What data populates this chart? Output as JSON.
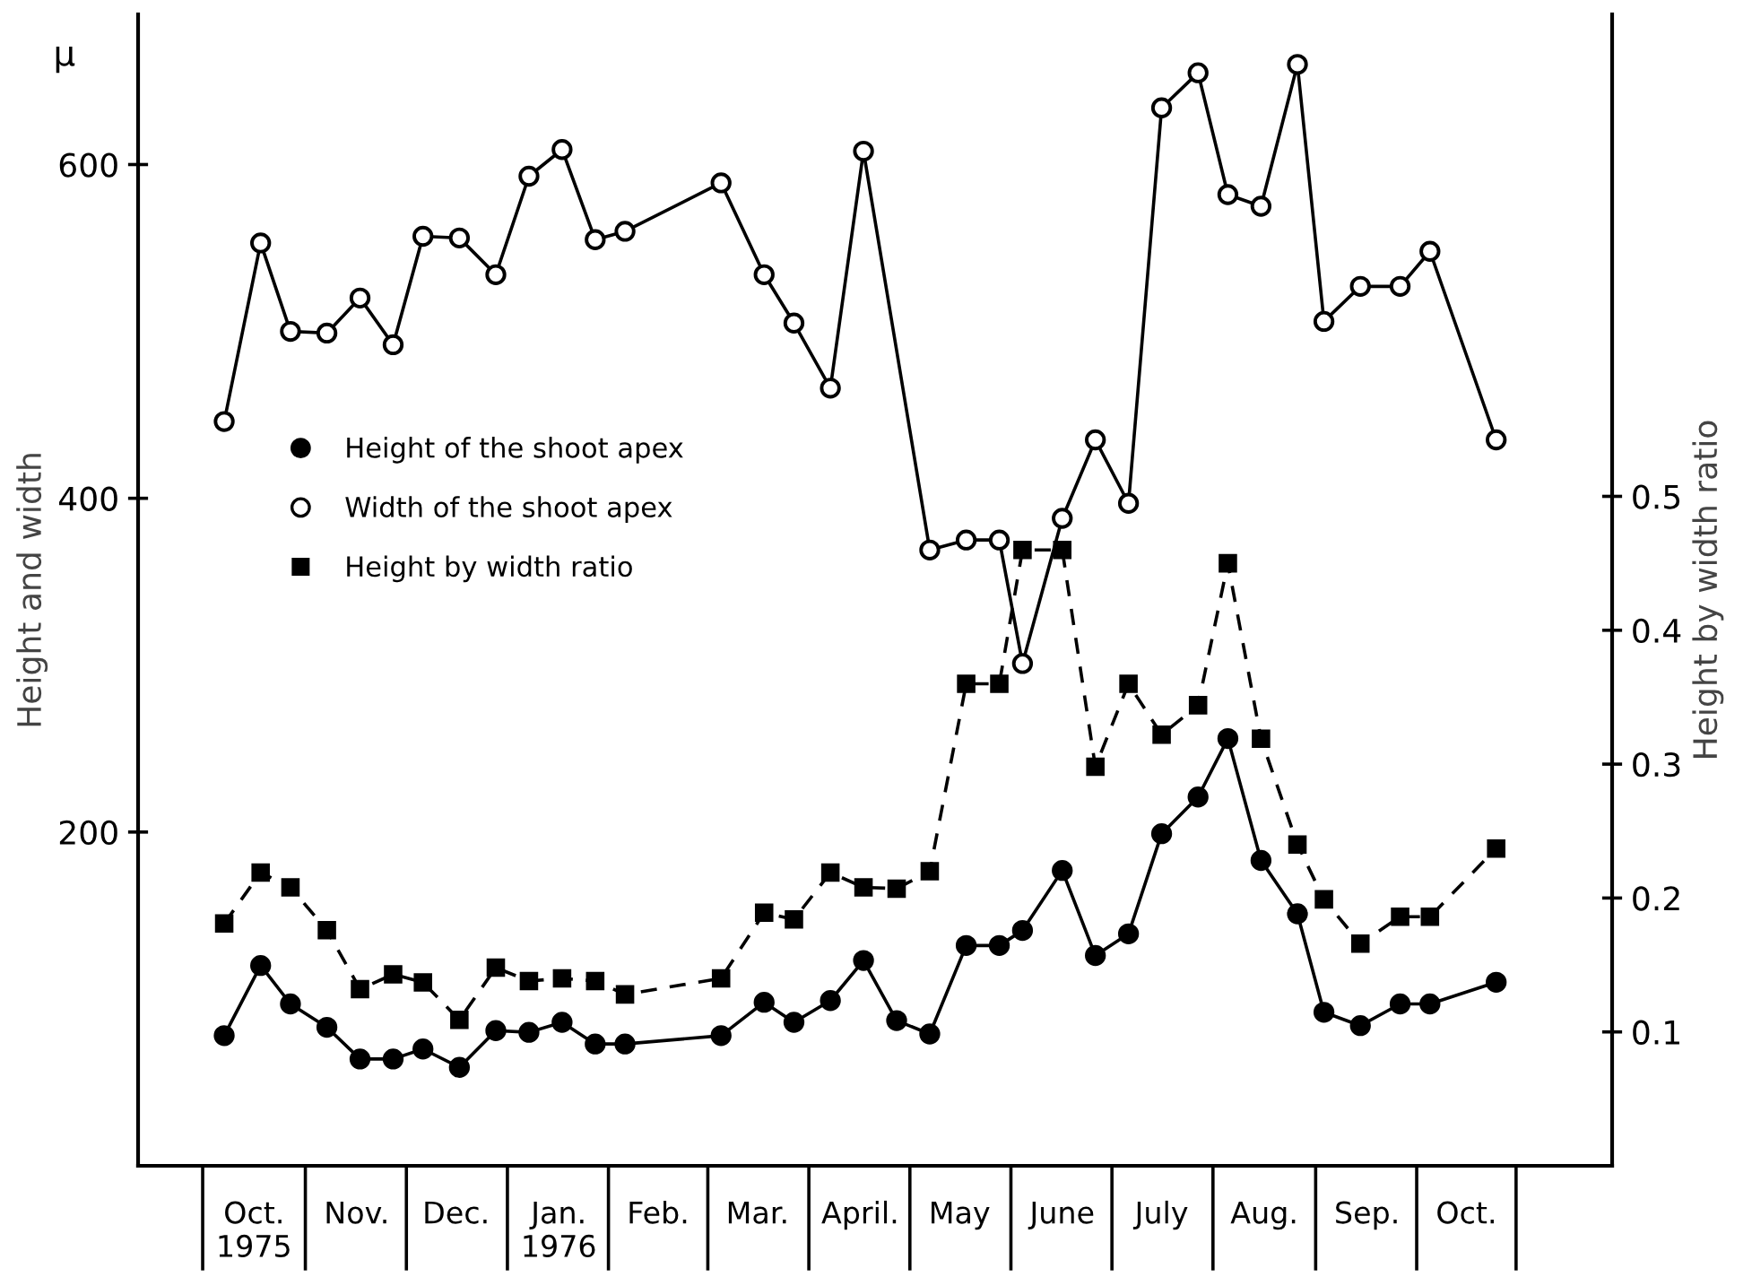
{
  "chart_data": {
    "type": "line",
    "ylabel": "Height and width",
    "y2label": "Height by width ratio",
    "annotations": [
      "μ"
    ],
    "xlim": [
      "1975-09-11",
      "1976-11-29"
    ],
    "ylim": [
      0,
      690
    ],
    "yticks": [
      200,
      400,
      600
    ],
    "y2lim": [
      0,
      0.86
    ],
    "y2ticks": [
      0.1,
      0.2,
      0.3,
      0.4,
      0.5
    ],
    "xticks": [
      {
        "value": "1975-10-16",
        "label": "Oct.\n1975"
      },
      {
        "value": "1975-11-16",
        "label": "Nov."
      },
      {
        "value": "1975-12-16",
        "label": "Dec."
      },
      {
        "value": "1976-01-16",
        "label": "Jan.\n1976"
      },
      {
        "value": "1976-02-15",
        "label": "Feb."
      },
      {
        "value": "1976-03-16",
        "label": "Mar."
      },
      {
        "value": "1976-04-16",
        "label": "April."
      },
      {
        "value": "1976-05-16",
        "label": "May"
      },
      {
        "value": "1976-06-16",
        "label": "June"
      },
      {
        "value": "1976-07-16",
        "label": "July"
      },
      {
        "value": "1976-08-16",
        "label": "Aug."
      },
      {
        "value": "1976-09-16",
        "label": "Sep."
      },
      {
        "value": "1976-10-16",
        "label": "Oct."
      }
    ],
    "grid": false,
    "legend": "left",
    "x": [
      "1975-10-07",
      "1975-10-18",
      "1975-10-27",
      "1975-11-07",
      "1975-11-17",
      "1975-11-27",
      "1975-12-06",
      "1975-12-17",
      "1975-12-28",
      "1976-01-07",
      "1976-01-17",
      "1976-01-27",
      "1976-02-05",
      "1976-03-05",
      "1976-03-18",
      "1976-03-27",
      "1976-04-07",
      "1976-04-17",
      "1976-04-27",
      "1976-05-07",
      "1976-05-18",
      "1976-05-28",
      "1976-06-04",
      "1976-06-16",
      "1976-06-26",
      "1976-07-06",
      "1976-07-16",
      "1976-07-27",
      "1976-08-05",
      "1976-08-15",
      "1976-08-26",
      "1976-09-03",
      "1976-09-14",
      "1976-09-26",
      "1976-10-05",
      "1976-10-25"
    ],
    "series": [
      {
        "name": "Height of the shoot apex",
        "color": "#000000",
        "marker": "circle",
        "line_style": "solid",
        "values": [
          78,
          120,
          97,
          83,
          64,
          64,
          70,
          59,
          81,
          80,
          86,
          73,
          73,
          78,
          98,
          86,
          99,
          123,
          87,
          79,
          132,
          132,
          141,
          177,
          126,
          139,
          199,
          221,
          256,
          183,
          151,
          92,
          84,
          97,
          97,
          110
        ]
      },
      {
        "name": "Width of the shoot apex",
        "color": "#000000",
        "marker": "circle-open",
        "line_style": "solid",
        "x": [
          "1975-10-07",
          "1975-10-18",
          "1975-10-27",
          "1975-11-07",
          "1975-11-17",
          "1975-11-27",
          "1975-12-06",
          "1975-12-17",
          "1975-12-28",
          "1976-01-07",
          "1976-01-17",
          "1976-01-27",
          "1976-02-05",
          "1976-03-05",
          "1976-03-18",
          "1976-03-27",
          "1976-04-07",
          "1976-04-17",
          "1976-05-07",
          "1976-05-18",
          "1976-05-28",
          "1976-06-04",
          "1976-06-16",
          "1976-06-26",
          "1976-07-06",
          "1976-07-16",
          "1976-07-27",
          "1976-08-05",
          "1976-08-15",
          "1976-08-26",
          "1976-09-03",
          "1976-09-14",
          "1976-09-26",
          "1976-10-05",
          "1976-10-25"
        ],
        "values": [
          446,
          553,
          500,
          499,
          520,
          492,
          557,
          556,
          534,
          593,
          609,
          555,
          560,
          589,
          534,
          505,
          466,
          608,
          369,
          375,
          375,
          301,
          388,
          435,
          397,
          634,
          655,
          582,
          575,
          660,
          506,
          527,
          527,
          548,
          435
        ]
      },
      {
        "name": "Height by width ratio",
        "color": "#000000",
        "marker": "square",
        "line_style": "dashed",
        "axis": "y2",
        "values": [
          0.181,
          0.219,
          0.208,
          0.176,
          0.132,
          0.143,
          0.137,
          0.109,
          0.148,
          0.138,
          0.14,
          0.138,
          0.128,
          0.14,
          0.189,
          0.184,
          0.219,
          0.208,
          0.207,
          0.22,
          0.36,
          0.36,
          0.46,
          0.46,
          0.298,
          0.36,
          0.322,
          0.344,
          0.45,
          0.319,
          0.24,
          0.199,
          0.166,
          0.186,
          0.186,
          0.237
        ]
      }
    ]
  }
}
